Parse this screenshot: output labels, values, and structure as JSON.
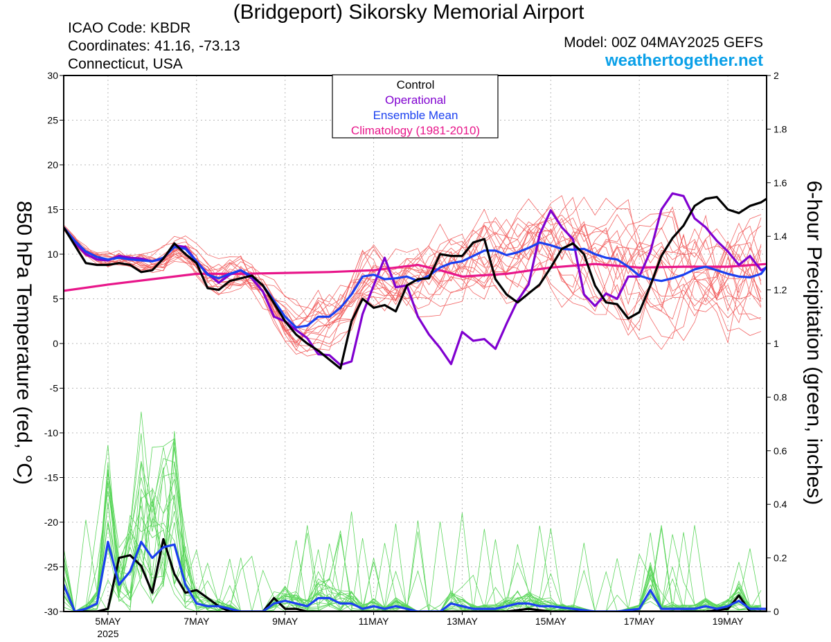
{
  "header": {
    "title": "(Bridgeport) Sikorsky Memorial Airport",
    "icao": "ICAO Code: KBDR",
    "coords": "Coordinates: 41.16, -73.13",
    "region": "Connecticut, USA",
    "model": "Model: 00Z 04MAY2025 GEFS",
    "site": "weathertogether.net"
  },
  "colors": {
    "control": "#000000",
    "operational": "#8000d0",
    "ensemble_mean": "#1a3ff0",
    "climatology": "#e8168a",
    "members_temp": "#ee3030",
    "members_precip": "#33cc33",
    "site": "#0aa0e8"
  },
  "chart_data": {
    "type": "line",
    "xlabel": "",
    "ylabel": "850 hPa Temperature (red, °C)",
    "y2label": "6-hour Precipitation (green, inches)",
    "ylim": [
      -30,
      30
    ],
    "y2lim": [
      0,
      2
    ],
    "xlim": [
      4.0,
      19.875
    ],
    "x_unit": "day of May 2025",
    "yticks": [
      "30",
      "25",
      "20",
      "15",
      "10",
      "5",
      "0",
      "-5",
      "-10",
      "-15",
      "-20",
      "-25",
      "-30"
    ],
    "y2ticks": [
      "2",
      "1.8",
      "1.6",
      "1.4",
      "1.2",
      "1",
      "0.8",
      "0.6",
      "0.4",
      "0.2",
      "0"
    ],
    "xticks": [
      {
        "x": 5,
        "label": "5MAY",
        "sub": "2025"
      },
      {
        "x": 7,
        "label": "7MAY"
      },
      {
        "x": 9,
        "label": "9MAY"
      },
      {
        "x": 11,
        "label": "11MAY"
      },
      {
        "x": 13,
        "label": "13MAY"
      },
      {
        "x": 15,
        "label": "15MAY"
      },
      {
        "x": 17,
        "label": "17MAY"
      },
      {
        "x": 19,
        "label": "19MAY"
      }
    ],
    "grid": true,
    "legend": {
      "position": "top-center",
      "entries": [
        {
          "label": "Control",
          "color": "#000000"
        },
        {
          "label": "Operational",
          "color": "#8000d0"
        },
        {
          "label": "Ensemble Mean",
          "color": "#1a3ff0"
        },
        {
          "label": "Climatology (1981-2010)",
          "color": "#e8168a"
        }
      ]
    },
    "series": [
      {
        "name": "Control",
        "axis": "temp",
        "x": [
          4.0,
          4.25,
          4.5,
          4.75,
          5.0,
          5.25,
          5.5,
          5.75,
          6.0,
          6.25,
          6.5,
          6.75,
          7.0,
          7.25,
          7.5,
          7.75,
          8.0,
          8.25,
          8.5,
          8.75,
          9.0,
          9.25,
          9.5,
          9.75,
          10.0,
          10.25,
          10.5,
          10.75,
          11.0,
          11.25,
          11.5,
          11.75,
          12.0,
          12.25,
          12.5,
          12.75,
          13.0,
          13.25,
          13.5,
          13.75,
          14.0,
          14.25,
          14.5,
          14.75,
          15.0,
          15.25,
          15.5,
          15.75,
          16.0,
          16.25,
          16.5,
          16.75,
          17.0,
          17.25,
          17.5,
          17.75,
          18.0,
          18.25,
          18.5,
          18.75,
          19.0,
          19.25,
          19.5,
          19.75,
          19.875
        ],
        "y": [
          13,
          11,
          9,
          8.8,
          8.8,
          9,
          8.8,
          8,
          8.2,
          9.5,
          11.2,
          10,
          9,
          6.2,
          6,
          7,
          7.3,
          7.6,
          6.5,
          4.5,
          2.5,
          1,
          0,
          -0.8,
          -1.8,
          -2.8,
          2.5,
          5,
          4,
          4.3,
          3.6,
          6.5,
          7.2,
          7.3,
          10,
          9.8,
          9.8,
          11.3,
          11.7,
          7.2,
          5.5,
          4.6,
          5.6,
          6.6,
          8.5,
          10.6,
          11.2,
          10,
          6.5,
          4.6,
          4.4,
          2.8,
          3.5,
          6.5,
          9.8,
          11.8,
          13.2,
          15.4,
          16.2,
          16.4,
          15,
          14.6,
          15.4,
          15.8,
          16.2
        ]
      },
      {
        "name": "Operational",
        "axis": "temp",
        "x": [
          4.0,
          4.25,
          4.5,
          4.75,
          5.0,
          5.25,
          5.5,
          5.75,
          6.0,
          6.25,
          6.5,
          6.75,
          7.0,
          7.25,
          7.5,
          7.75,
          8.0,
          8.25,
          8.5,
          8.75,
          9.0,
          9.25,
          9.5,
          9.75,
          10.0,
          10.25,
          10.5,
          10.75,
          11.0,
          11.25,
          11.5,
          11.75,
          12.0,
          12.25,
          12.5,
          12.75,
          13.0,
          13.25,
          13.5,
          13.75,
          14.0,
          14.25,
          14.5,
          14.75,
          15.0,
          15.25,
          15.5,
          15.75,
          16.0,
          16.25,
          16.5,
          16.75,
          17.0,
          17.25,
          17.5,
          17.75,
          18.0,
          18.25,
          18.5,
          18.75,
          19.0,
          19.25,
          19.5,
          19.75,
          19.875
        ],
        "y": [
          13,
          11.3,
          10,
          9.4,
          9.3,
          9.8,
          9.6,
          9.5,
          9.2,
          9.5,
          11,
          10.8,
          9.2,
          7.8,
          6.8,
          7.7,
          8.2,
          7.3,
          5.8,
          3,
          2.5,
          1.5,
          0.6,
          -1.2,
          -1.3,
          -2.4,
          -2,
          3.3,
          6.5,
          9.6,
          6.3,
          6.5,
          3,
          1,
          -0.5,
          -2.3,
          1.3,
          0.3,
          0.5,
          -0.6,
          2.2,
          4.8,
          6.6,
          12.2,
          14.9,
          13,
          11.7,
          5.5,
          4.2,
          5.6,
          5,
          7.5,
          7.5,
          10.3,
          15,
          16.8,
          16.5,
          14,
          13,
          11.5,
          10.3,
          8.8,
          9.8,
          8.2,
          8.5
        ]
      },
      {
        "name": "Ensemble Mean",
        "axis": "temp",
        "x": [
          4.0,
          4.25,
          4.5,
          4.75,
          5.0,
          5.25,
          5.5,
          5.75,
          6.0,
          6.25,
          6.5,
          6.75,
          7.0,
          7.25,
          7.5,
          7.75,
          8.0,
          8.25,
          8.5,
          8.75,
          9.0,
          9.25,
          9.5,
          9.75,
          10.0,
          10.25,
          10.5,
          10.75,
          11.0,
          11.25,
          11.5,
          11.75,
          12.0,
          12.25,
          12.5,
          12.75,
          13.0,
          13.25,
          13.5,
          13.75,
          14.0,
          14.25,
          14.5,
          14.75,
          15.0,
          15.25,
          15.5,
          15.75,
          16.0,
          16.25,
          16.5,
          16.75,
          17.0,
          17.25,
          17.5,
          17.75,
          18.0,
          18.25,
          18.5,
          18.75,
          19.0,
          19.25,
          19.5,
          19.75,
          19.875
        ],
        "y": [
          13,
          11.5,
          10.3,
          9.7,
          9.4,
          9.6,
          9.4,
          9.3,
          9.2,
          9.6,
          10.8,
          10.6,
          9.2,
          7.7,
          7.3,
          7.8,
          8.2,
          7.5,
          6.5,
          4.8,
          3,
          1.8,
          2,
          3,
          3,
          4,
          5.5,
          7.5,
          7.7,
          7.2,
          7.3,
          7.5,
          7,
          7.6,
          8.5,
          9,
          9.2,
          9.8,
          10.4,
          10.4,
          9.9,
          10.2,
          10.7,
          11.3,
          11,
          10.6,
          10.5,
          10.6,
          10,
          9.6,
          9.4,
          8.6,
          7.6,
          7.2,
          7,
          7.3,
          7.7,
          8.3,
          8.6,
          8.2,
          7.8,
          7.5,
          7.4,
          7.8,
          8.6
        ]
      },
      {
        "name": "Climatology (1981-2010)",
        "axis": "temp",
        "x": [
          4.0,
          5.0,
          6.0,
          7.0,
          8.0,
          9.0,
          10.0,
          11.0,
          12.0,
          12.5,
          13.0,
          14.0,
          15.0,
          16.0,
          17.0,
          18.0,
          19.0,
          19.875
        ],
        "y": [
          5.9,
          6.6,
          7.2,
          7.8,
          7.8,
          7.9,
          8.0,
          8.2,
          8.8,
          8.2,
          7.5,
          7.8,
          8.5,
          8.9,
          8.5,
          8.6,
          8.6,
          8.9
        ]
      },
      {
        "name": "Control",
        "axis": "precip",
        "x": [
          4.0,
          4.25,
          4.5,
          4.75,
          5.0,
          5.25,
          5.5,
          5.75,
          6.0,
          6.25,
          6.5,
          6.75,
          7.0,
          7.25,
          7.5,
          7.75,
          8.0,
          8.25,
          8.5,
          8.75,
          9.0,
          9.25,
          9.5,
          9.75,
          10.0,
          10.25,
          10.5,
          10.75,
          11.0,
          11.25,
          11.5,
          11.75,
          12.0,
          12.5,
          13.0,
          13.5,
          14.0,
          14.5,
          15.0,
          15.5,
          16.0,
          16.5,
          17.0,
          17.5,
          18.0,
          18.5,
          19.0,
          19.25,
          19.5,
          19.875
        ],
        "y": [
          0.1,
          0,
          0,
          0,
          0.01,
          0.2,
          0.21,
          0.17,
          0.07,
          0.27,
          0.14,
          0.07,
          0.08,
          0.05,
          0.02,
          0,
          0,
          0,
          0,
          0.05,
          0.01,
          0.01,
          0,
          0,
          0,
          0,
          0,
          0,
          0,
          0,
          0,
          0,
          0,
          0,
          0,
          0,
          0,
          0.01,
          0,
          0,
          0,
          0,
          0,
          0,
          0,
          0,
          0.01,
          0.06,
          0,
          0
        ]
      },
      {
        "name": "Ensemble Mean",
        "axis": "precip",
        "x": [
          4.0,
          4.25,
          4.5,
          4.75,
          5.0,
          5.25,
          5.5,
          5.75,
          6.0,
          6.25,
          6.5,
          6.75,
          7.0,
          7.25,
          7.5,
          7.75,
          8.0,
          8.25,
          8.5,
          8.75,
          9.0,
          9.25,
          9.5,
          9.75,
          10.0,
          10.25,
          10.5,
          10.75,
          11.0,
          11.25,
          11.5,
          11.75,
          12.0,
          12.25,
          12.5,
          12.75,
          13.0,
          13.25,
          13.5,
          13.75,
          14.0,
          14.25,
          14.5,
          14.75,
          15.0,
          15.5,
          16.0,
          16.5,
          17.0,
          17.25,
          17.5,
          17.75,
          18.0,
          18.25,
          18.5,
          18.75,
          19.0,
          19.25,
          19.5,
          19.75,
          19.875
        ],
        "y": [
          0.1,
          0,
          0.01,
          0.03,
          0.26,
          0.1,
          0.15,
          0.26,
          0.2,
          0.24,
          0.25,
          0.1,
          0.03,
          0.02,
          0.02,
          0.01,
          0,
          0,
          0,
          0.03,
          0.04,
          0.03,
          0.02,
          0.05,
          0.05,
          0.03,
          0.03,
          0.01,
          0.02,
          0.01,
          0.02,
          0.01,
          0,
          0,
          0,
          0.03,
          0.02,
          0.01,
          0.01,
          0.01,
          0.02,
          0.03,
          0.03,
          0.02,
          0.02,
          0.01,
          0,
          0,
          0.01,
          0.08,
          0.01,
          0.01,
          0.01,
          0.01,
          0.02,
          0.01,
          0.02,
          0.04,
          0.01,
          0.01,
          0.01
        ]
      }
    ]
  }
}
